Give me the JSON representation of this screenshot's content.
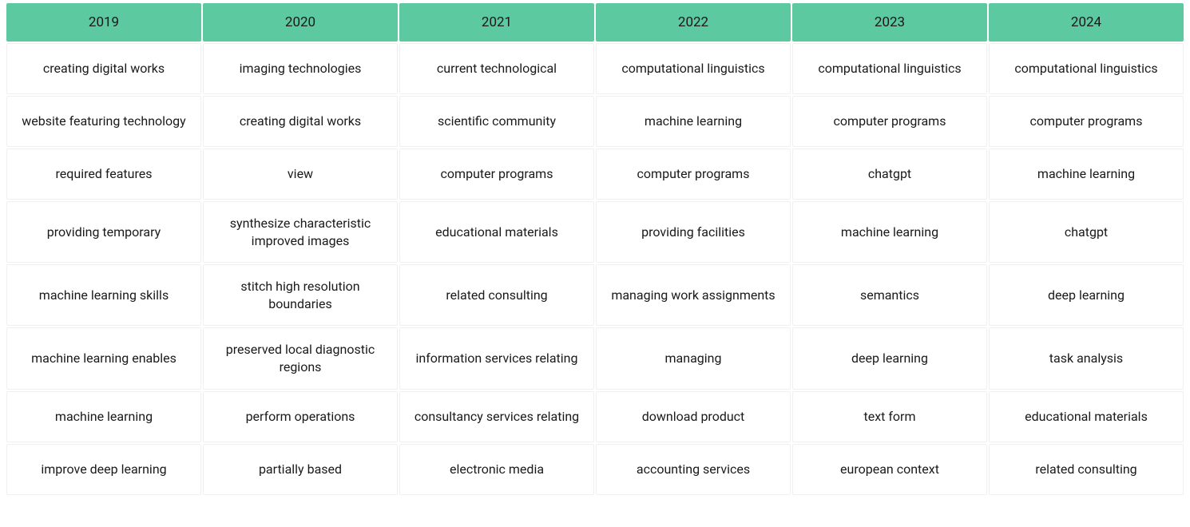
{
  "table": {
    "type": "table",
    "header_bg": "#5cc9a0",
    "header_text_color": "#1a1a1a",
    "cell_bg": "#ffffff",
    "cell_text_color": "#1a1a1a",
    "cell_border_color": "#f0f0f0",
    "header_fontsize": 17,
    "cell_fontsize": 16,
    "columns": [
      "2019",
      "2020",
      "2021",
      "2022",
      "2023",
      "2024"
    ],
    "rows": [
      [
        "creating digital works",
        "imaging technologies",
        "current technological",
        "computational linguistics",
        "computational linguistics",
        "computational linguistics"
      ],
      [
        "website featuring technology",
        "creating digital works",
        "scientific community",
        "machine learning",
        "computer programs",
        "computer programs"
      ],
      [
        "required features",
        "view",
        "computer programs",
        "computer programs",
        "chatgpt",
        "machine learning"
      ],
      [
        "providing temporary",
        "synthesize characteristic improved images",
        "educational materials",
        "providing facilities",
        "machine learning",
        "chatgpt"
      ],
      [
        "machine learning skills",
        "stitch high resolution boundaries",
        "related consulting",
        "managing work assignments",
        "semantics",
        "deep learning"
      ],
      [
        "machine learning enables",
        "preserved local diagnostic regions",
        "information services relating",
        "managing",
        "deep learning",
        "task analysis"
      ],
      [
        "machine learning",
        "perform operations",
        "consultancy services relating",
        "download product",
        "text form",
        "educational materials"
      ],
      [
        "improve deep learning",
        "partially based",
        "electronic media",
        "accounting services",
        "european context",
        "related consulting"
      ]
    ]
  }
}
